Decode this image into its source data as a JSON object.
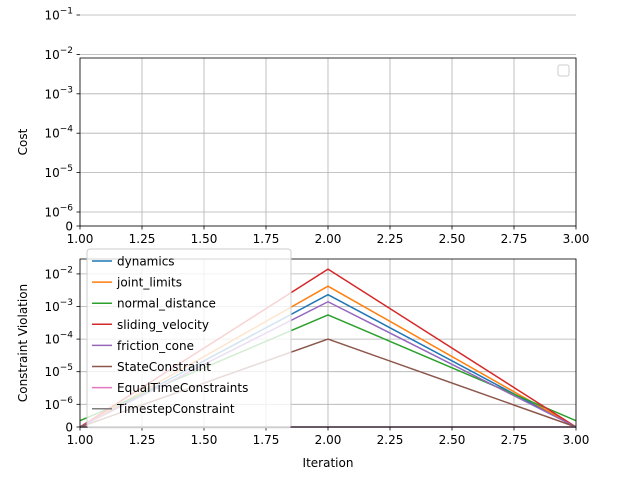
{
  "chart_data": [
    {
      "type": "line",
      "ylabel": "Cost",
      "xlabel": "",
      "xlim": [
        1.0,
        3.0
      ],
      "yscale": "symlog",
      "y_ticks": [
        {
          "value": 0,
          "label": "0"
        },
        {
          "value": 1e-06,
          "label": "10",
          "exp": "−6"
        },
        {
          "value": 1e-05,
          "label": "10",
          "exp": "−5"
        },
        {
          "value": 0.0001,
          "label": "10",
          "exp": "−4"
        },
        {
          "value": 0.001,
          "label": "10",
          "exp": "−3"
        },
        {
          "value": 0.01,
          "label": "10",
          "exp": "−2"
        },
        {
          "value": 0.1,
          "label": "10",
          "exp": "−1"
        }
      ],
      "x_ticks": [
        "1.00",
        "1.25",
        "1.50",
        "1.75",
        "2.00",
        "2.25",
        "2.50",
        "2.75",
        "3.00"
      ],
      "grid": true,
      "legend": "upper-right (empty)",
      "series": []
    },
    {
      "type": "line",
      "ylabel": "Constraint Violation",
      "xlabel": "Iteration",
      "xlim": [
        1.0,
        3.0
      ],
      "yscale": "symlog",
      "y_ticks": [
        {
          "value": 0,
          "label": "0"
        },
        {
          "value": 1e-06,
          "label": "10",
          "exp": "−6"
        },
        {
          "value": 1e-05,
          "label": "10",
          "exp": "−5"
        },
        {
          "value": 0.0001,
          "label": "10",
          "exp": "−4"
        },
        {
          "value": 0.001,
          "label": "10",
          "exp": "−3"
        },
        {
          "value": 0.01,
          "label": "10",
          "exp": "−2"
        }
      ],
      "x_ticks": [
        "1.00",
        "1.25",
        "1.50",
        "1.75",
        "2.00",
        "2.25",
        "2.50",
        "2.75",
        "3.00"
      ],
      "grid": true,
      "legend": "upper-left",
      "x": [
        1,
        2,
        3
      ],
      "series": [
        {
          "name": "dynamics",
          "color": "#1f77b4",
          "values": [
            0,
            0.0023,
            0
          ]
        },
        {
          "name": "joint_limits",
          "color": "#ff7f0e",
          "values": [
            0,
            0.0042,
            0
          ]
        },
        {
          "name": "normal_distance",
          "color": "#2ca02c",
          "values": [
            2.8e-07,
            0.00055,
            2.8e-07
          ]
        },
        {
          "name": "sliding_velocity",
          "color": "#d62728",
          "values": [
            0,
            0.014,
            0
          ]
        },
        {
          "name": "friction_cone",
          "color": "#9467bd",
          "values": [
            0,
            0.0014,
            0
          ]
        },
        {
          "name": "StateConstraint",
          "color": "#8c564b",
          "values": [
            0,
            0.0001,
            0
          ]
        },
        {
          "name": "EqualTimeConstraints",
          "color": "#e377c2",
          "values": [
            0,
            0,
            0
          ]
        },
        {
          "name": "TimestepConstraint",
          "color": "#7f7f7f",
          "values": [
            0,
            0,
            0
          ]
        }
      ]
    }
  ]
}
